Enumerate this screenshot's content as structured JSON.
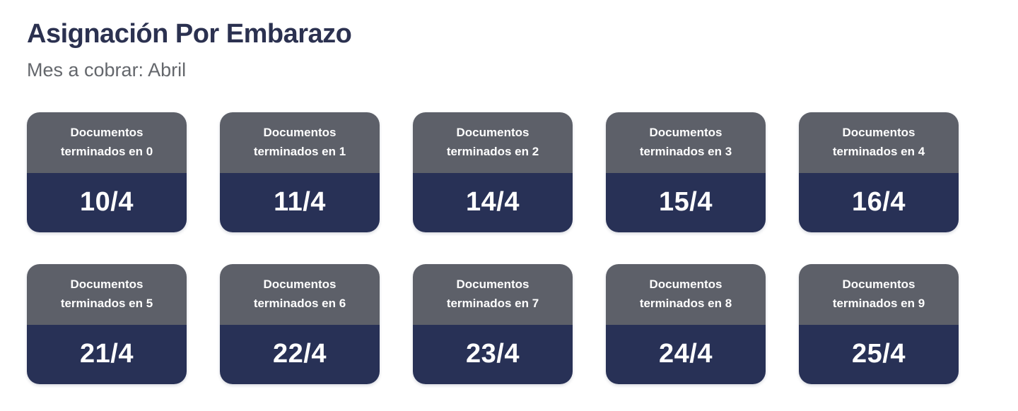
{
  "page": {
    "title": "Asignación Por Embarazo",
    "subtitle": "Mes a cobrar: Abril"
  },
  "colors": {
    "title_text": "#2b3150",
    "subtitle_text": "#64676c",
    "card_header_bg": "#5d6069",
    "card_body_bg": "#283156",
    "card_text": "#ffffff"
  },
  "cards": [
    {
      "label": "Documentos terminados en 0",
      "date": "10/4"
    },
    {
      "label": "Documentos terminados en 1",
      "date": "11/4"
    },
    {
      "label": "Documentos terminados en 2",
      "date": "14/4"
    },
    {
      "label": "Documentos terminados en 3",
      "date": "15/4"
    },
    {
      "label": "Documentos terminados en 4",
      "date": "16/4"
    },
    {
      "label": "Documentos terminados en 5",
      "date": "21/4"
    },
    {
      "label": "Documentos terminados en 6",
      "date": "22/4"
    },
    {
      "label": "Documentos terminados en 7",
      "date": "23/4"
    },
    {
      "label": "Documentos terminados en 8",
      "date": "24/4"
    },
    {
      "label": "Documentos terminados en 9",
      "date": "25/4"
    }
  ]
}
